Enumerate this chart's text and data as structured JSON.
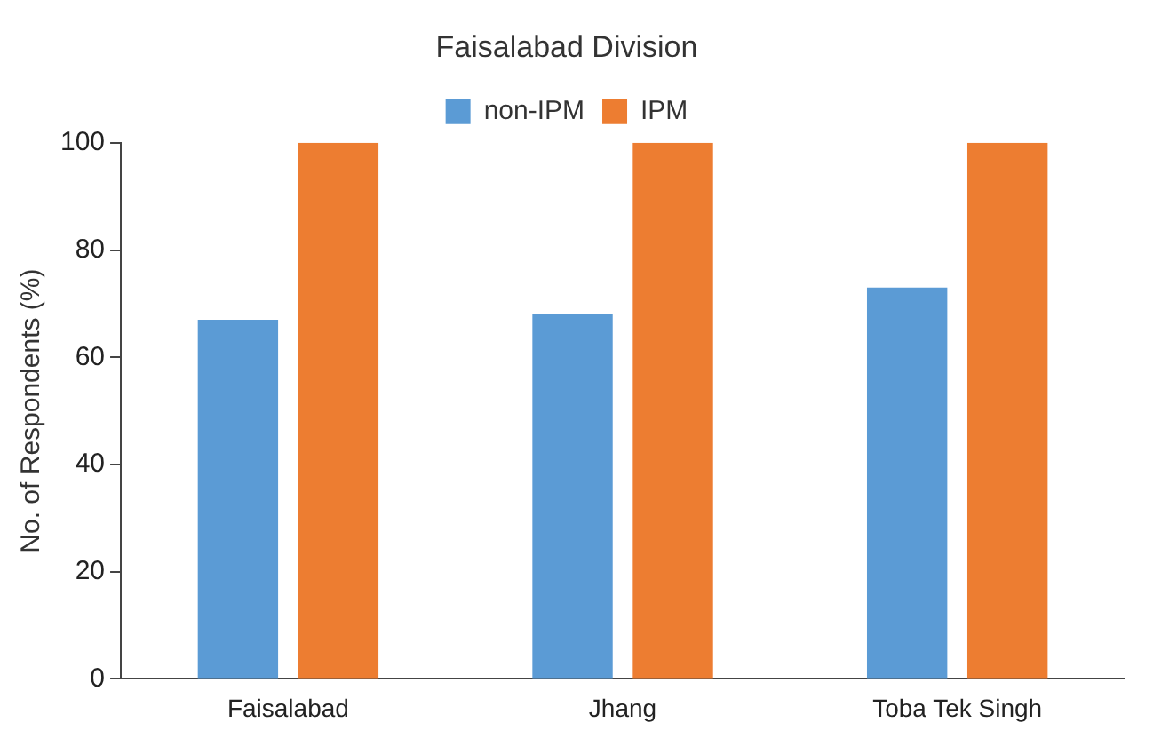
{
  "chart_data": {
    "type": "bar",
    "title": "Faisalabad Division",
    "ylabel": "No. of Respondents (%)",
    "categories": [
      "Faisalabad",
      "Jhang",
      "Toba Tek Singh"
    ],
    "series": [
      {
        "name": "non-IPM",
        "color": "#5b9bd5",
        "values": [
          67,
          68,
          73
        ]
      },
      {
        "name": "IPM",
        "color": "#ed7d31",
        "values": [
          100,
          100,
          100
        ]
      }
    ],
    "ylim": [
      0,
      100
    ],
    "yticks": [
      0,
      20,
      40,
      60,
      80,
      100
    ],
    "grid": false,
    "legend": "top"
  }
}
